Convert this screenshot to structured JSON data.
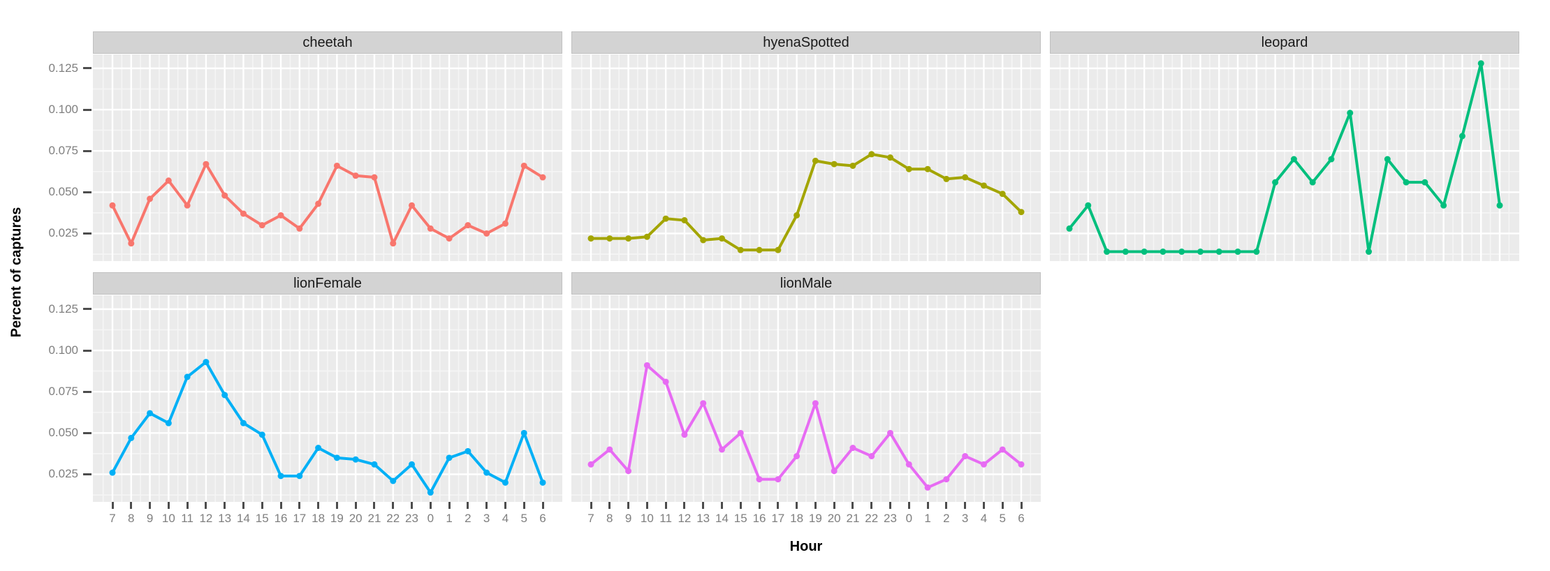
{
  "figure": {
    "background": "#ffffff",
    "panel_background": "#ebebeb",
    "strip_background": "#d3d3d3",
    "grid_major_color": "#ffffff",
    "grid_minor_color": "#f7f7f7",
    "tick_label_color": "#7f7f7f",
    "tick_mark_color": "#4d4d4d"
  },
  "axes": {
    "y_title": "Percent of captures",
    "x_title": "Hour",
    "y_tick_labels": [
      "0.125",
      "0.100",
      "0.075",
      "0.050",
      "0.025"
    ],
    "x_tick_labels": [
      "7",
      "8",
      "9",
      "10",
      "11",
      "12",
      "13",
      "14",
      "15",
      "16",
      "17",
      "18",
      "19",
      "20",
      "21",
      "22",
      "23",
      "0",
      "1",
      "2",
      "3",
      "4",
      "5",
      "6"
    ]
  },
  "chart_data": {
    "type": "line",
    "faceted": true,
    "facet_layout": [
      {
        "name": "cheetah",
        "row": 0,
        "col": 0
      },
      {
        "name": "hyenaSpotted",
        "row": 0,
        "col": 1
      },
      {
        "name": "leopard",
        "row": 0,
        "col": 2
      },
      {
        "name": "lionFemale",
        "row": 1,
        "col": 0
      },
      {
        "name": "lionMale",
        "row": 1,
        "col": 1
      }
    ],
    "x_categories": [
      "7",
      "8",
      "9",
      "10",
      "11",
      "12",
      "13",
      "14",
      "15",
      "16",
      "17",
      "18",
      "19",
      "20",
      "21",
      "22",
      "23",
      "0",
      "1",
      "2",
      "3",
      "4",
      "5",
      "6"
    ],
    "xlabel": "Hour",
    "ylabel": "Percent of captures",
    "yticks": [
      0.025,
      0.05,
      0.075,
      0.1,
      0.125
    ],
    "ylim": [
      0.0083,
      0.1334
    ],
    "grid": true,
    "legend": "none",
    "marker": "point",
    "series": [
      {
        "name": "cheetah",
        "color": "#F8766D",
        "values": [
          0.042,
          0.019,
          0.046,
          0.057,
          0.042,
          0.067,
          0.048,
          0.037,
          0.03,
          0.036,
          0.028,
          0.043,
          0.066,
          0.06,
          0.059,
          0.019,
          0.042,
          0.028,
          0.022,
          0.03,
          0.025,
          0.031,
          0.066,
          0.059
        ]
      },
      {
        "name": "hyenaSpotted",
        "color": "#A3A500",
        "values": [
          0.022,
          0.022,
          0.022,
          0.023,
          0.034,
          0.033,
          0.021,
          0.022,
          0.015,
          0.015,
          0.015,
          0.036,
          0.069,
          0.067,
          0.066,
          0.073,
          0.071,
          0.064,
          0.064,
          0.058,
          0.059,
          0.054,
          0.049,
          0.038
        ]
      },
      {
        "name": "leopard",
        "color": "#00BF7D",
        "values": [
          0.028,
          0.042,
          0.014,
          0.014,
          0.014,
          0.014,
          0.014,
          0.014,
          0.014,
          0.014,
          0.014,
          0.056,
          0.07,
          0.056,
          0.07,
          0.098,
          0.014,
          0.07,
          0.056,
          0.056,
          0.042,
          0.084,
          0.128,
          0.042
        ]
      },
      {
        "name": "lionFemale",
        "color": "#00B0F6",
        "values": [
          0.026,
          0.047,
          0.062,
          0.056,
          0.084,
          0.093,
          0.073,
          0.056,
          0.049,
          0.024,
          0.024,
          0.041,
          0.035,
          0.034,
          0.031,
          0.021,
          0.031,
          0.014,
          0.035,
          0.039,
          0.026,
          0.02,
          0.05,
          0.02
        ]
      },
      {
        "name": "lionMale",
        "color": "#E76BF3",
        "values": [
          0.031,
          0.04,
          0.027,
          0.091,
          0.081,
          0.049,
          0.068,
          0.04,
          0.05,
          0.022,
          0.022,
          0.036,
          0.068,
          0.027,
          0.041,
          0.036,
          0.05,
          0.031,
          0.017,
          0.022,
          0.036,
          0.031,
          0.04,
          0.031
        ]
      }
    ]
  }
}
